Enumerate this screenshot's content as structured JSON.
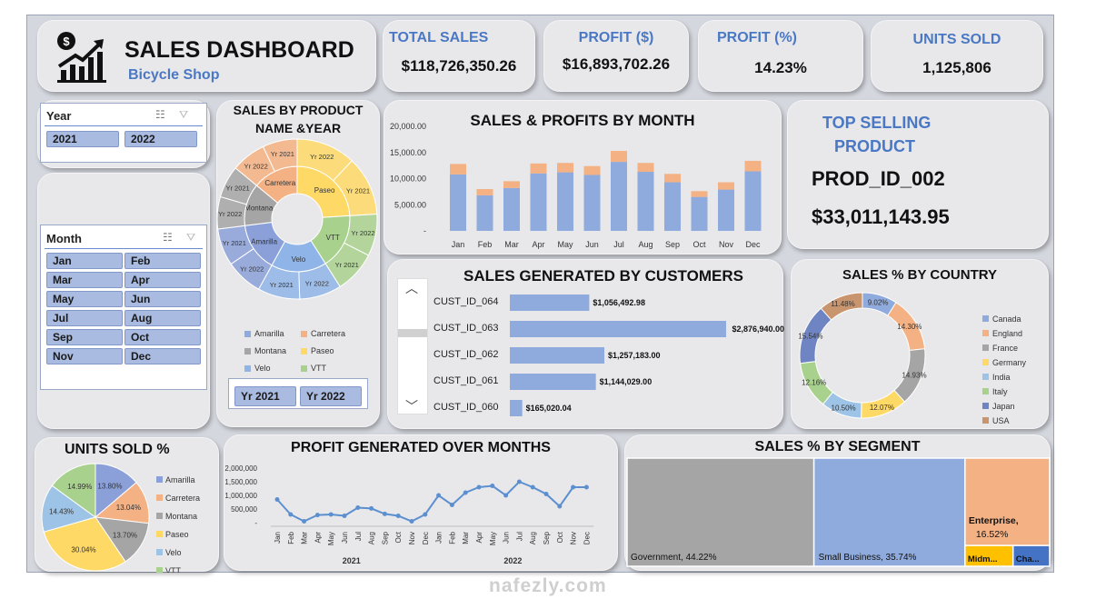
{
  "header": {
    "title": "SALES DASHBOARD",
    "subtitle": "Bicycle Shop"
  },
  "kpis": [
    {
      "label": "TOTAL SALES",
      "value": "$118,726,350.26"
    },
    {
      "label": "PROFIT ($)",
      "value": "$16,893,702.26"
    },
    {
      "label": "PROFIT (%)",
      "value": "14.23%"
    },
    {
      "label": "UNITS SOLD",
      "value": "1,125,806"
    }
  ],
  "year_slicer": {
    "title": "Year",
    "items": [
      "2021",
      "2022"
    ]
  },
  "month_slicer": {
    "title": "Month",
    "items": [
      "Jan",
      "Feb",
      "Mar",
      "Apr",
      "May",
      "Jun",
      "Jul",
      "Aug",
      "Sep",
      "Oct",
      "Nov",
      "Dec"
    ]
  },
  "top_product": {
    "title_line1": "TOP SELLING",
    "title_line2": "PRODUCT",
    "id": "PROD_ID_002",
    "value": "$33,011,143.95"
  },
  "sunburst": {
    "title_line1": "SALES BY PRODUCT",
    "title_line2": "NAME &YEAR",
    "year_buttons": [
      "Yr 2021",
      "Yr 2022"
    ]
  },
  "colors": {
    "blue": "#8faadc",
    "orange": "#f4b183",
    "gray": "#a5a5a5",
    "yellow": "#ffd966",
    "green": "#a9d18e",
    "navy": "#6f84c3",
    "brown": "#c9956e",
    "line": "#5b8fd0",
    "accent": "#4a78c4"
  },
  "chart_data": [
    {
      "type": "bar",
      "title": "SALES & PROFITS BY MONTH",
      "categories": [
        "Jan",
        "Feb",
        "Mar",
        "Apr",
        "May",
        "Jun",
        "Jul",
        "Aug",
        "Sep",
        "Oct",
        "Nov",
        "Dec"
      ],
      "series": [
        {
          "values": [
            10800,
            6800,
            8200,
            11000,
            11200,
            10700,
            13200,
            11300,
            9300,
            6500,
            7900,
            11400
          ]
        },
        {
          "values": [
            2000,
            1200,
            1300,
            1900,
            1800,
            1700,
            2100,
            1700,
            1600,
            1100,
            1400,
            2000
          ]
        }
      ],
      "stacked": true,
      "yticks": [
        "20,000.00",
        "15,000.00",
        "10,000.00",
        "5,000.00",
        "-"
      ],
      "ylim": [
        0,
        20000
      ]
    },
    {
      "type": "bar",
      "orientation": "horizontal",
      "title": "SALES GENERATED BY CUSTOMERS",
      "categories": [
        "CUST_ID_064",
        "CUST_ID_063",
        "CUST_ID_062",
        "CUST_ID_061",
        "CUST_ID_060"
      ],
      "values": [
        1056492.98,
        2876940.0,
        1257183.0,
        1144029.0,
        165020.04
      ],
      "labels": [
        "$1,056,492.98",
        "$2,876,940.00",
        "$1,257,183.00",
        "$1,144,029.00",
        "$165,020.04"
      ]
    },
    {
      "type": "pie",
      "variant": "sunburst",
      "legend": [
        "Amarilla",
        "Carretera",
        "Montana",
        "Paseo",
        "Velo",
        "VTT"
      ],
      "inner": [
        {
          "name": "Paseo",
          "value": 24
        },
        {
          "name": "VTT",
          "value": 17
        },
        {
          "name": "Velo",
          "value": 17
        },
        {
          "name": "Amarilla",
          "value": 15
        },
        {
          "name": "Montana",
          "value": 13
        },
        {
          "name": "Carretera",
          "value": 14
        }
      ],
      "outer": [
        {
          "label": "Yr 2022",
          "value": 12
        },
        {
          "label": "Yr 2021",
          "value": 12
        },
        {
          "label": "Yr 2022",
          "value": 8.5
        },
        {
          "label": "Yr 2021",
          "value": 8.5
        },
        {
          "label": "Yr 2022",
          "value": 8.5
        },
        {
          "label": "Yr 2021",
          "value": 8.5
        },
        {
          "label": "Yr 2022",
          "value": 7.5
        },
        {
          "label": "Yr 2021",
          "value": 7.5
        },
        {
          "label": "Yr 2022",
          "value": 6.5
        },
        {
          "label": "Yr 2021",
          "value": 6.5
        },
        {
          "label": "Yr 2022",
          "value": 7
        },
        {
          "label": "Yr 2021",
          "value": 7
        }
      ]
    },
    {
      "type": "pie",
      "variant": "donut",
      "title": "SALES % BY COUNTRY",
      "categories": [
        "Canada",
        "England",
        "France",
        "Germany",
        "India",
        "Italy",
        "Japan",
        "USA"
      ],
      "values": [
        9.02,
        14.3,
        14.93,
        12.07,
        10.5,
        12.16,
        15.54,
        11.48
      ],
      "labels": [
        "9.02%",
        "14.30%",
        "14.93%",
        "12.07%",
        "10.50%",
        "12.16%",
        "15.54%",
        "11.48%"
      ]
    },
    {
      "type": "pie",
      "title": "UNITS SOLD %",
      "categories": [
        "Amarilla",
        "Carretera",
        "Montana",
        "Paseo",
        "Velo",
        "VTT"
      ],
      "values": [
        13.8,
        13.04,
        13.7,
        30.04,
        14.43,
        14.99
      ],
      "labels": [
        "13.80%",
        "13.04%",
        "13.70%",
        "30.04%",
        "14.43%",
        "14.99%"
      ]
    },
    {
      "type": "line",
      "title": "PROFIT GENERATED OVER MONTHS",
      "categories": [
        "Jan",
        "Feb",
        "Mar",
        "Apr",
        "May",
        "Jun",
        "Jul",
        "Aug",
        "Sep",
        "Oct",
        "Nov",
        "Dec",
        "Jan",
        "Feb",
        "Mar",
        "Apr",
        "May",
        "Jun",
        "Jul",
        "Aug",
        "Sep",
        "Oct",
        "Nov",
        "Dec"
      ],
      "groups": [
        "2021",
        "2022"
      ],
      "values": [
        850000,
        300000,
        50000,
        280000,
        300000,
        250000,
        550000,
        520000,
        320000,
        250000,
        50000,
        300000,
        1000000,
        650000,
        1100000,
        1300000,
        1350000,
        1000000,
        1500000,
        1300000,
        1050000,
        600000,
        1300000,
        1300000
      ],
      "yticks": [
        "2,000,000",
        "1,500,000",
        "1,000,000",
        "500,000",
        "-"
      ],
      "ylim": [
        0,
        2000000
      ]
    },
    {
      "type": "treemap",
      "title": "SALES % BY SEGMENT",
      "items": [
        {
          "name": "Government",
          "value": 44.22,
          "label": "Government, 44.22%"
        },
        {
          "name": "Small Business",
          "value": 35.74,
          "label": "Small Business, 35.74%"
        },
        {
          "name": "Enterprise",
          "value": 16.52,
          "label1": "Enterprise,",
          "label2": "16.52%"
        },
        {
          "name": "Midmarket",
          "value": 2.0,
          "label": "Midm..."
        },
        {
          "name": "Channel Partners",
          "value": 1.52,
          "label": "Cha..."
        }
      ]
    }
  ],
  "watermark": "nafezly.com"
}
